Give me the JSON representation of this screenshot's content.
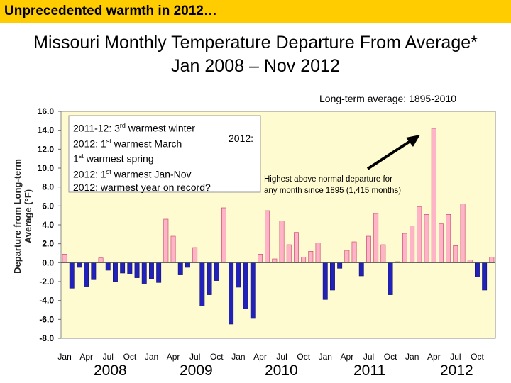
{
  "banner": {
    "text": "Unprecedented warmth in 2012…",
    "color": "#ffcc00"
  },
  "title": {
    "line1": "Missouri Monthly Temperature Departure From Average*",
    "line2": "Jan 2008 – Nov 2012"
  },
  "reference_note": "Long-term average: 1895-2010",
  "annotation": {
    "l1_pre": "2011-12: 3",
    "l1_sup": "rd",
    "l1_post": " warmest winter",
    "l2_pre": "2012: 1",
    "l2_sup": "st",
    "l2_post": " warmest March",
    "l3_pre": "1",
    "l3_sup": "st",
    "l3_post": " warmest spring",
    "l4_pre": "2012: 1",
    "l4_sup": "st",
    "l4_post": " warmest Jan-Nov",
    "l5": "2012: warmest year on record?",
    "label_2012": "2012:"
  },
  "highest_note": {
    "line1": "Highest above normal departure for",
    "line2": "any month since 1895 (1,415 months)"
  },
  "years": [
    "2008",
    "2009",
    "2010",
    "2011",
    "2012"
  ],
  "colors": {
    "positive": "#ffb3c6",
    "negative": "#2222bb",
    "plot_bg": "#fffbd0",
    "arrow": "#000000"
  },
  "chart_data": {
    "type": "bar",
    "ylabel": "Departure from Long-term Average (°F)",
    "ylim": [
      -8.0,
      16.0
    ],
    "yticks": [
      "16.0",
      "14.0",
      "12.0",
      "10.0",
      "8.0",
      "6.0",
      "4.0",
      "2.0",
      "0.0",
      "-2.0",
      "-4.0",
      "-6.0",
      "-8.0"
    ],
    "x_tick_labels": [
      "Jan",
      "Apr",
      "Jul",
      "Oct",
      "Jan",
      "Apr",
      "Jul",
      "Oct",
      "Jan",
      "Apr",
      "Jul",
      "Oct",
      "Jan",
      "Apr",
      "Jul",
      "Oct",
      "Jan",
      "Apr",
      "Jul",
      "Oct"
    ],
    "grid": false,
    "values": [
      0.9,
      -2.7,
      -0.5,
      -2.5,
      -1.8,
      0.5,
      -0.8,
      -2.0,
      -1.1,
      -1.2,
      -1.6,
      -2.2,
      -1.7,
      -2.1,
      4.6,
      2.8,
      -1.3,
      -0.5,
      1.6,
      -4.6,
      -3.4,
      -1.9,
      5.8,
      -6.5,
      -2.6,
      -4.9,
      -5.9,
      0.9,
      5.5,
      0.4,
      4.4,
      1.9,
      3.2,
      0.6,
      1.2,
      2.1,
      -3.9,
      -2.9,
      -0.6,
      1.3,
      2.2,
      -1.4,
      2.8,
      5.2,
      1.9,
      -3.4,
      0.1,
      3.1,
      3.9,
      5.9,
      5.1,
      14.2,
      4.1,
      5.1,
      1.8,
      6.2,
      0.3,
      -1.5,
      -2.9,
      0.6
    ]
  }
}
